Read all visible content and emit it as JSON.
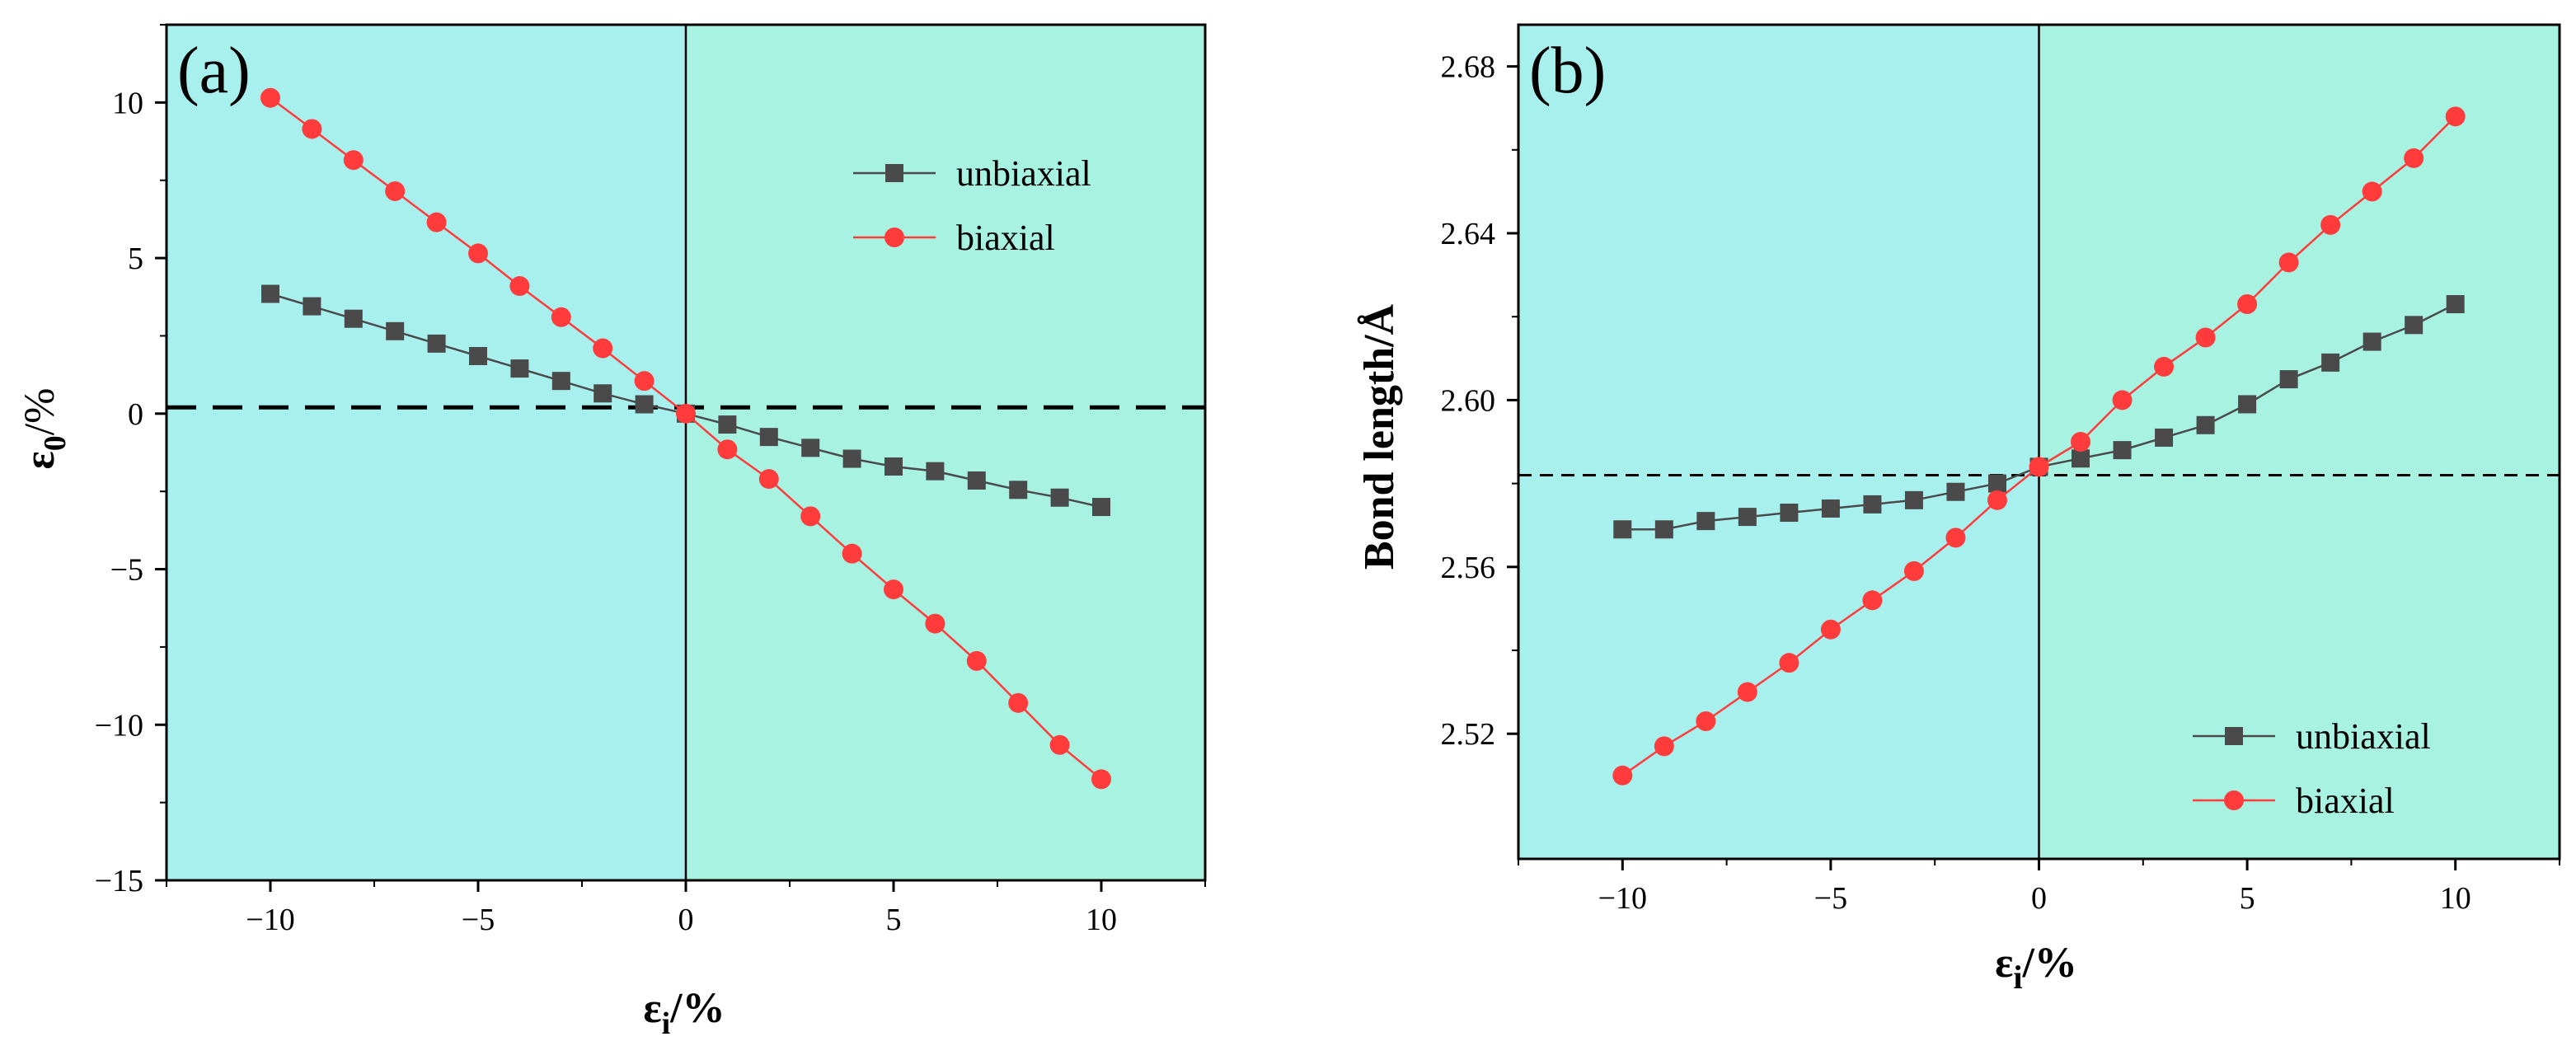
{
  "chart_data": [
    {
      "panel_label": "(a)",
      "type": "line",
      "xlabel": {
        "main": "ε",
        "sub": "i",
        "suffix": "/%"
      },
      "ylabel": {
        "main": "ε",
        "sub": "0",
        "suffix": "/%"
      },
      "xlim": [
        -12.5,
        12.5
      ],
      "ylim": [
        -15,
        12.5
      ],
      "xticks": [
        -10,
        -5,
        0,
        5,
        10
      ],
      "xtick_labels": [
        "−10",
        "−5",
        "0",
        "5",
        "10"
      ],
      "yticks": [
        -15,
        -10,
        -5,
        0,
        5,
        10
      ],
      "ytick_labels": [
        "−15",
        "−10",
        "−5",
        "0",
        "5",
        "10"
      ],
      "hline": 0.2,
      "vline": 0,
      "background": {
        "left": "#a8f0ee",
        "right": "#a8f2e2"
      },
      "legend_position": "upper-right",
      "series": [
        {
          "name": "unbiaxial",
          "color": "#4a4a4a",
          "marker": "square",
          "x": [
            -10,
            -9,
            -8,
            -7,
            -6,
            -5,
            -4,
            -3,
            -2,
            -1,
            0,
            1,
            2,
            3,
            4,
            5,
            6,
            7,
            8,
            9,
            10
          ],
          "y": [
            3.85,
            3.45,
            3.05,
            2.65,
            2.25,
            1.85,
            1.45,
            1.05,
            0.65,
            0.3,
            0.0,
            -0.35,
            -0.75,
            -1.1,
            -1.45,
            -1.7,
            -1.85,
            -2.15,
            -2.45,
            -2.7,
            -3.0
          ]
        },
        {
          "name": "biaxial",
          "color": "#ff3b3b",
          "marker": "circle",
          "x": [
            -10,
            -9,
            -8,
            -7,
            -6,
            -5,
            -4,
            -3,
            -2,
            -1,
            0,
            1,
            2,
            3,
            4,
            5,
            6,
            7,
            8,
            9,
            10
          ],
          "y": [
            10.15,
            9.15,
            8.15,
            7.15,
            6.15,
            5.15,
            4.1,
            3.1,
            2.1,
            1.05,
            0.0,
            -1.15,
            -2.1,
            -3.3,
            -4.5,
            -5.65,
            -6.75,
            -7.95,
            -9.3,
            -10.65,
            -11.75
          ]
        }
      ]
    },
    {
      "panel_label": "(b)",
      "type": "line",
      "xlabel": {
        "main": "ε",
        "sub": "i",
        "suffix": "/%"
      },
      "ylabel": {
        "main": "Bond length/Å",
        "sub": "",
        "suffix": ""
      },
      "xlim": [
        -12.5,
        12.5
      ],
      "ylim": [
        2.49,
        2.69
      ],
      "xticks": [
        -10,
        -5,
        0,
        5,
        10
      ],
      "xtick_labels": [
        "−10",
        "−5",
        "0",
        "5",
        "10"
      ],
      "yticks": [
        2.52,
        2.56,
        2.6,
        2.64,
        2.68
      ],
      "ytick_labels": [
        "2.52",
        "2.56",
        "2.60",
        "2.64",
        "2.68"
      ],
      "hline": 2.582,
      "vline": 0,
      "background": {
        "left": "#a8f0ee",
        "right": "#a8f2e2"
      },
      "legend_position": "lower-right",
      "series": [
        {
          "name": "unbiaxial",
          "color": "#4a4a4a",
          "marker": "square",
          "x": [
            -10,
            -9,
            -8,
            -7,
            -6,
            -5,
            -4,
            -3,
            -2,
            -1,
            0,
            1,
            2,
            3,
            4,
            5,
            6,
            7,
            8,
            9,
            10
          ],
          "y": [
            2.569,
            2.569,
            2.571,
            2.572,
            2.573,
            2.574,
            2.575,
            2.576,
            2.578,
            2.58,
            2.584,
            2.586,
            2.588,
            2.591,
            2.594,
            2.599,
            2.605,
            2.609,
            2.614,
            2.618,
            2.623
          ]
        },
        {
          "name": "biaxial",
          "color": "#ff3b3b",
          "marker": "circle",
          "x": [
            -10,
            -9,
            -8,
            -7,
            -6,
            -5,
            -4,
            -3,
            -2,
            -1,
            0,
            1,
            2,
            3,
            4,
            5,
            6,
            7,
            8,
            9,
            10
          ],
          "y": [
            2.51,
            2.517,
            2.523,
            2.53,
            2.537,
            2.545,
            2.552,
            2.559,
            2.567,
            2.576,
            2.584,
            2.59,
            2.6,
            2.608,
            2.615,
            2.623,
            2.633,
            2.642,
            2.65,
            2.658,
            2.668
          ]
        }
      ]
    }
  ]
}
